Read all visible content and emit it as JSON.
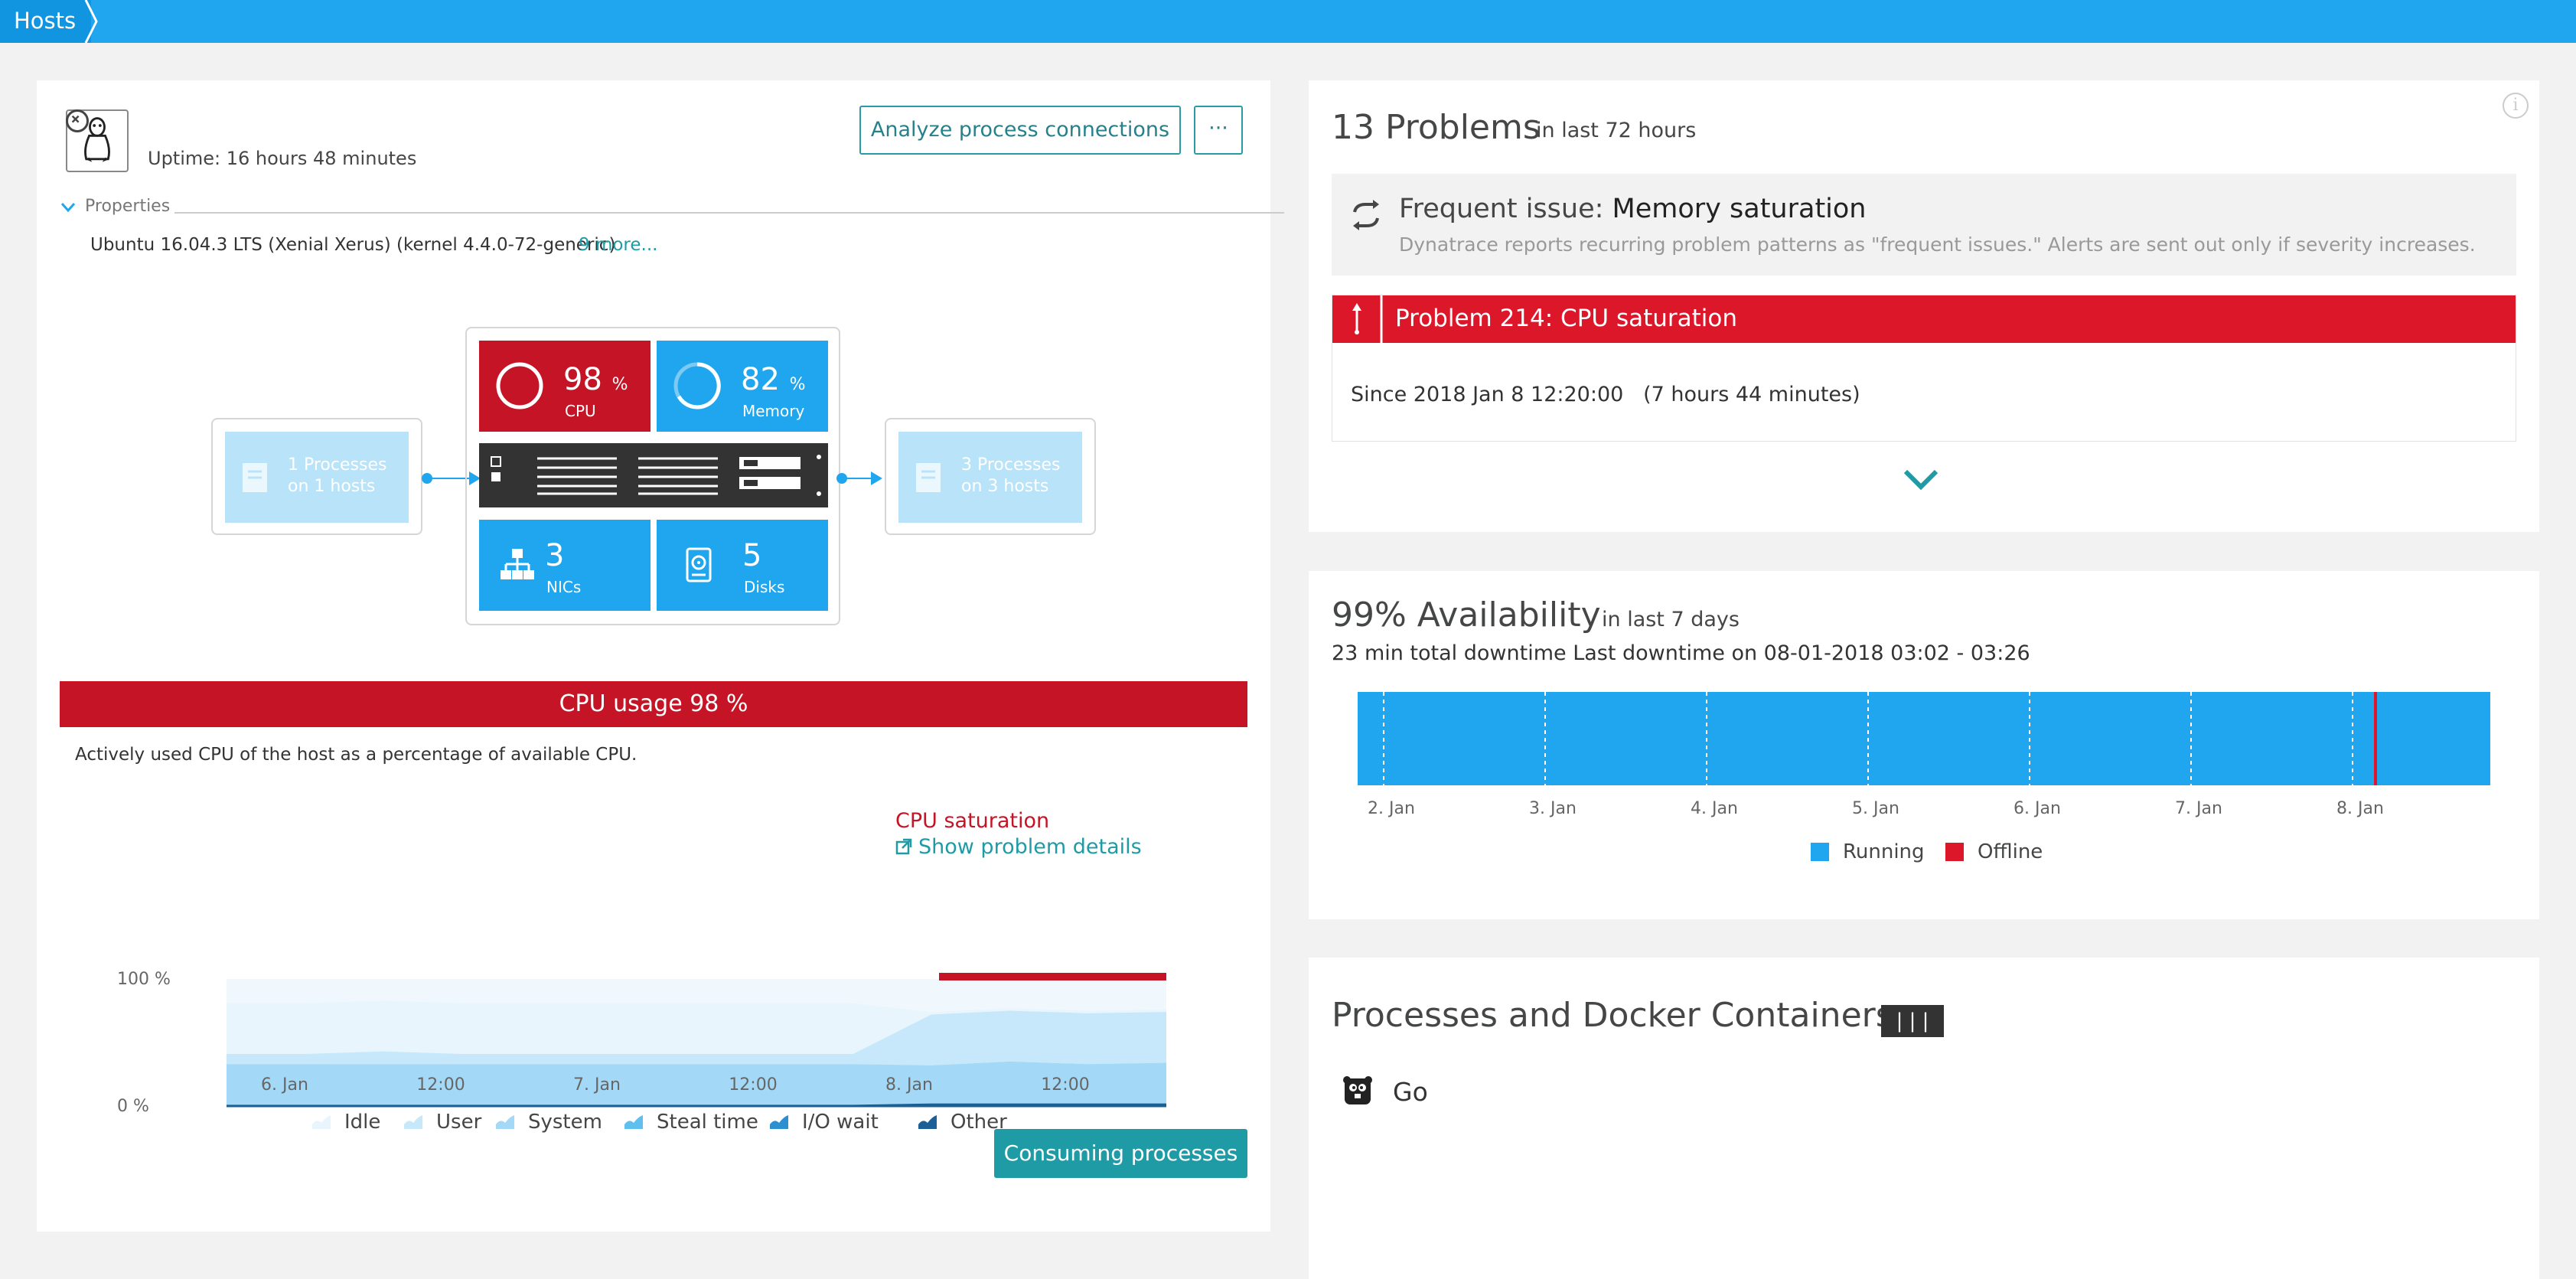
{
  "nav": {
    "breadcrumb": "Hosts"
  },
  "host": {
    "uptime": "Uptime: 16 hours 48 minutes",
    "analyze_button": "Analyze process connections",
    "more_button": "···",
    "properties_label": "Properties",
    "os_text": "Ubuntu 16.04.3 LTS (Xenial Xerus) (kernel 4.4.0-72-generic)",
    "more_link": "9 more..."
  },
  "infra": {
    "incoming": {
      "count_line": "1 Processes",
      "hosts_line": "on 1 hosts"
    },
    "outgoing": {
      "count_line": "3 Processes",
      "hosts_line": "on 3 hosts"
    },
    "cpu": {
      "value": "98",
      "unit": "%",
      "label": "CPU",
      "level": 0.98
    },
    "memory": {
      "value": "82",
      "unit": "%",
      "label": "Memory",
      "level": 0.82
    },
    "nics": {
      "value": "3",
      "label": "NICs"
    },
    "disks": {
      "value": "5",
      "label": "Disks"
    }
  },
  "cpu_section": {
    "banner": "CPU usage 98 %",
    "description": "Actively used CPU of the host as a percentage of available CPU.",
    "saturation_label": "CPU saturation",
    "problem_link": "Show problem details",
    "consuming_button": "Consuming processes"
  },
  "problems": {
    "count_title": "13 Problems",
    "period": "in last 72 hours",
    "frequent_prefix": "Frequent issue:",
    "frequent_name": "Memory saturation",
    "frequent_desc": "Dynatrace reports recurring problem patterns as \"frequent issues.\" Alerts are sent out only if severity increases.",
    "problem_title": "Problem 214: CPU saturation",
    "since": "Since 2018 Jan 8 12:20:00",
    "duration": "(7 hours 44 minutes)"
  },
  "availability": {
    "title": "99% Availability",
    "period": "in last 7 days",
    "downtime": "23 min total downtime Last downtime on 08-01-2018 03:02 - 03:26",
    "legend_running": "Running",
    "legend_offline": "Offline",
    "colors": {
      "running": "#1fa6ee",
      "offline": "#dc172a"
    }
  },
  "processes": {
    "title": "Processes and Docker Containers",
    "badge": "| | |",
    "items": [
      {
        "name": "Go"
      }
    ]
  },
  "chart_data": [
    {
      "type": "area",
      "title": "",
      "x_ticks": [
        "6. Jan",
        "12:00",
        "7. Jan",
        "12:00",
        "8. Jan",
        "12:00"
      ],
      "y_ticks": [
        "100 %",
        "0 %"
      ],
      "ylim": [
        0,
        100
      ],
      "legend": [
        "Idle",
        "User",
        "System",
        "Steal time",
        "I/O wait",
        "Other"
      ],
      "series_colors": {
        "Idle": "#e8f5fd",
        "User": "#c7e8fa",
        "System": "#a3d9f6",
        "Steal time": "#5fc0ef",
        "I/O wait": "#2b8fd0",
        "Other": "#1c5f96"
      },
      "stacked_series": [
        {
          "name": "Idle",
          "values": [
            40,
            40,
            40,
            40,
            40,
            40,
            40,
            40,
            40,
            2,
            2,
            2,
            2
          ]
        },
        {
          "name": "User",
          "values": [
            8,
            8,
            10,
            8,
            8,
            8,
            8,
            8,
            8,
            40,
            40,
            40,
            40
          ]
        },
        {
          "name": "System",
          "values": [
            32,
            32,
            32,
            32,
            32,
            32,
            32,
            32,
            32,
            30,
            33,
            31,
            32
          ]
        },
        {
          "name": "Other",
          "values": [
            1,
            1,
            1,
            1,
            1,
            1,
            1,
            1,
            1,
            2,
            2,
            2,
            2
          ]
        }
      ],
      "problem_interval": "8. Jan 12:20 – end"
    },
    {
      "type": "bar",
      "title": "",
      "categories": [
        "2. Jan",
        "3. Jan",
        "4. Jan",
        "5. Jan",
        "6. Jan",
        "7. Jan",
        "8. Jan"
      ],
      "series": [
        {
          "name": "Running",
          "values": [
            100,
            100,
            100,
            100,
            100,
            100,
            99.7
          ]
        },
        {
          "name": "Offline",
          "values": [
            0,
            0,
            0,
            0,
            0,
            0,
            0.3
          ]
        }
      ],
      "offline_marker_day": "8. Jan"
    }
  ]
}
